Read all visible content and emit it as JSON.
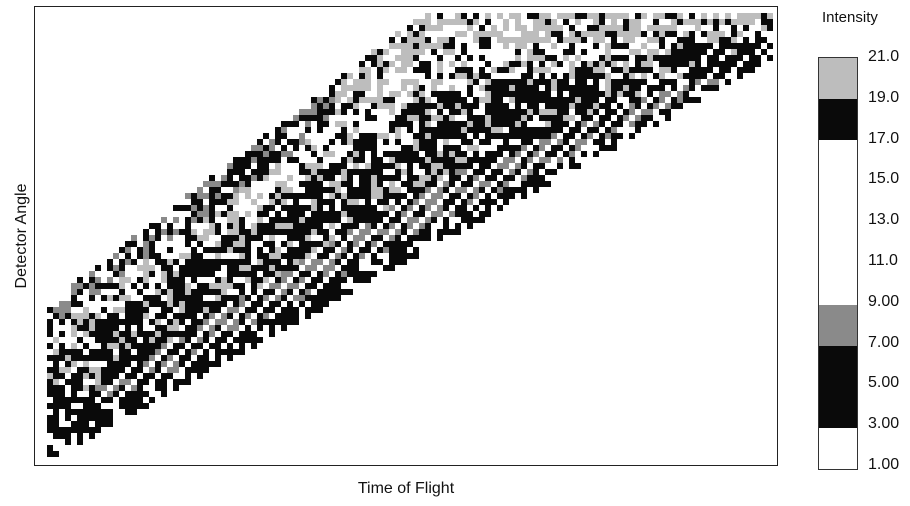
{
  "chart_data": {
    "type": "heatmap",
    "title": "",
    "xlabel": "Time of Flight",
    "ylabel": "Detector Angle",
    "colorbar": {
      "title": "Intensity",
      "tick_labels": [
        "21.0",
        "19.0",
        "17.0",
        "15.0",
        "13.0",
        "11.0",
        "9.00",
        "7.00",
        "5.00",
        "3.00",
        "1.00"
      ],
      "range": [
        1.0,
        21.0
      ],
      "levels": [
        {
          "from": 1.0,
          "to": 3.0,
          "color": "#ffffff"
        },
        {
          "from": 3.0,
          "to": 7.0,
          "color": "#0a0a0a"
        },
        {
          "from": 7.0,
          "to": 9.0,
          "color": "#8a8a8a"
        },
        {
          "from": 9.0,
          "to": 17.0,
          "color": "#ffffff"
        },
        {
          "from": 17.0,
          "to": 19.0,
          "color": "#0a0a0a"
        },
        {
          "from": 19.0,
          "to": 21.0,
          "color": "#bdbdbd"
        }
      ]
    },
    "grid": false
  }
}
